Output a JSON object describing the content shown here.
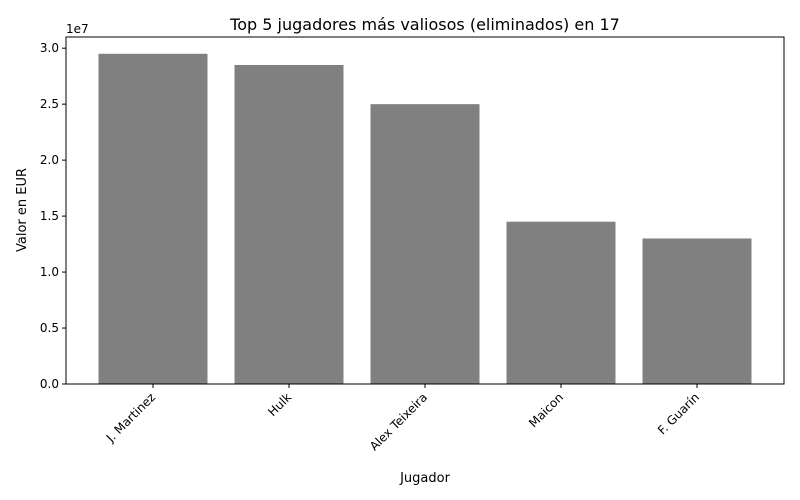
{
  "chart_data": {
    "type": "bar",
    "title": "Top 5 jugadores más valiosos (eliminados) en 17",
    "xlabel": "Jugador",
    "ylabel": "Valor en EUR",
    "y_offset_label": "1e7",
    "categories": [
      "J. Martinez",
      "Hulk",
      "Alex Teixeira",
      "Maicon",
      "F. Guarín"
    ],
    "values": [
      29500000,
      28500000,
      25000000,
      14500000,
      13000000
    ],
    "ylim": [
      0,
      31000000
    ],
    "yticks": [
      0,
      5000000,
      10000000,
      15000000,
      20000000,
      25000000,
      30000000
    ],
    "ytick_labels": [
      "0.0",
      "0.5",
      "1.0",
      "1.5",
      "2.0",
      "2.5",
      "3.0"
    ],
    "bar_color": "#808080",
    "grid": false,
    "legend": "none"
  }
}
